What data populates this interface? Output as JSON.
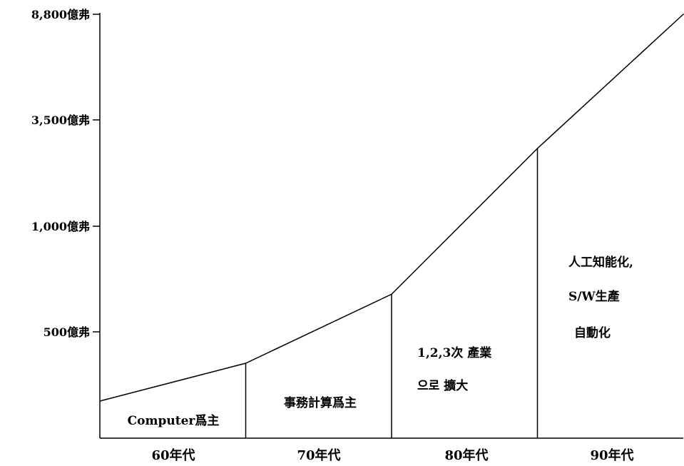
{
  "chart_data": {
    "type": "area",
    "title": "",
    "xlabel": "",
    "ylabel": "",
    "y_tick_labels": [
      "8,800億弗",
      "3,500億弗",
      "1,000億弗",
      "500億弗"
    ],
    "categories": [
      "60年代",
      "70年代",
      "80年代",
      "90年代"
    ],
    "points": [
      {
        "x": "1960",
        "y": 200
      },
      {
        "x": "1970",
        "y": 330
      },
      {
        "x": "1980",
        "y": 640
      },
      {
        "x": "1990",
        "y": 2500
      },
      {
        "x": "2000",
        "y": 8800
      }
    ],
    "segment_labels": [
      {
        "lines": [
          "Computer爲主"
        ]
      },
      {
        "lines": [
          "事務計算爲主"
        ]
      },
      {
        "lines": [
          "1,2,3次 產業",
          "으로 擴大"
        ]
      },
      {
        "lines": [
          "人工知能化,",
          "S/W生產",
          "自動化"
        ]
      }
    ],
    "grid": false
  }
}
